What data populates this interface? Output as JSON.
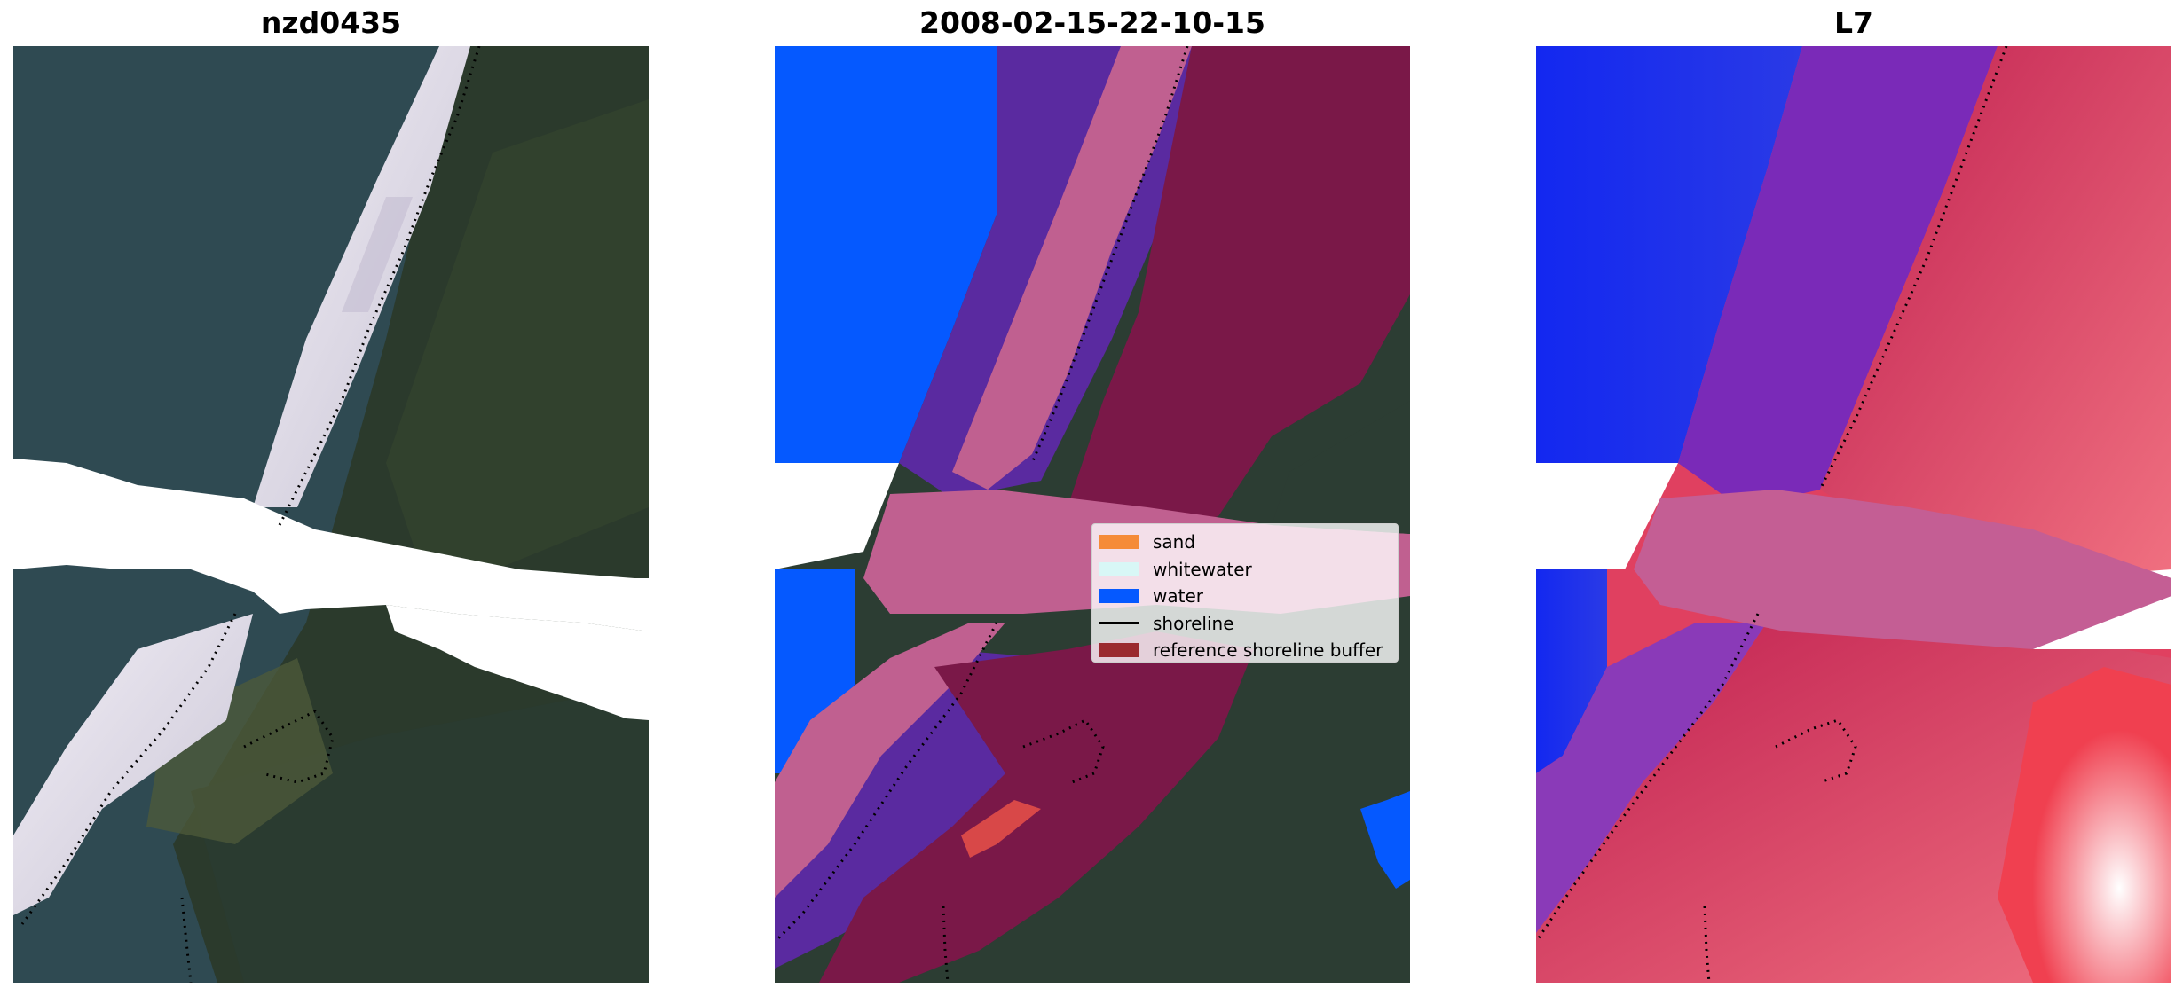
{
  "panels": [
    {
      "title": "nzd0435"
    },
    {
      "title": "2008-02-15-22-10-15"
    },
    {
      "title": "L7"
    }
  ],
  "legend": {
    "items": [
      {
        "label": "sand",
        "kind": "patch",
        "color": "#f58b38"
      },
      {
        "label": "whitewater",
        "kind": "patch",
        "color": "#d8f7f6"
      },
      {
        "label": "water",
        "kind": "patch",
        "color": "#0559ff"
      },
      {
        "label": "shoreline",
        "kind": "line",
        "color": "#000000"
      },
      {
        "label": "reference shoreline buffer",
        "kind": "patch",
        "color": "#9b2a2f"
      }
    ]
  },
  "colors": {
    "water_deep": "#2f4a52",
    "land_veg": "#2b3a2c",
    "surf_white": "#e9e6f0",
    "class_water": "#0559ff",
    "class_sand_purple": "#5a2aa0",
    "class_buffer": "#7a1848",
    "class_pink_band": "#c06090",
    "index_blue": "#1222f0",
    "index_red": "#e8405a"
  }
}
